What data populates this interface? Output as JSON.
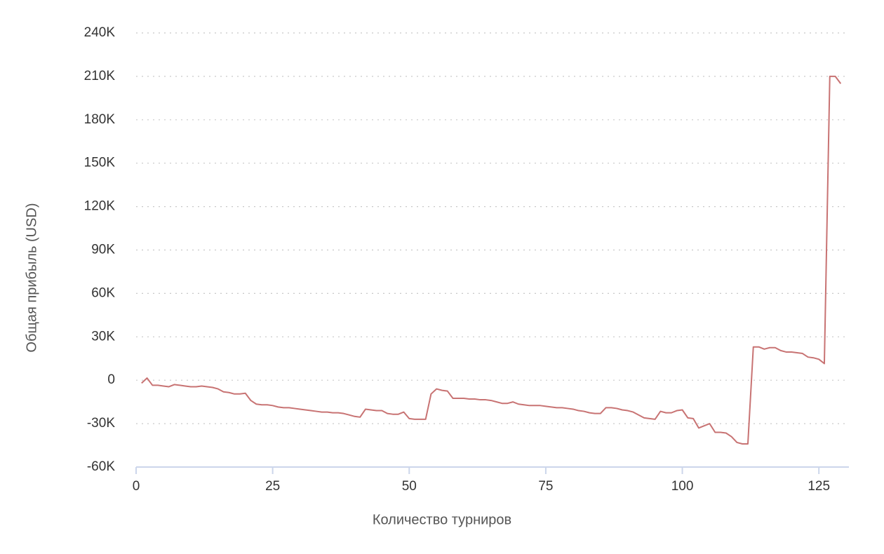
{
  "chart_data": {
    "type": "line",
    "x_label": "Количество турниров",
    "y_label": "Общая прибыль (USD)",
    "x": [
      1,
      2,
      3,
      4,
      5,
      6,
      7,
      8,
      9,
      10,
      11,
      12,
      13,
      14,
      15,
      16,
      17,
      18,
      19,
      20,
      21,
      22,
      23,
      24,
      25,
      26,
      27,
      28,
      29,
      30,
      31,
      32,
      33,
      34,
      35,
      36,
      37,
      38,
      39,
      40,
      41,
      42,
      43,
      44,
      45,
      46,
      47,
      48,
      49,
      50,
      51,
      52,
      53,
      54,
      55,
      56,
      57,
      58,
      59,
      60,
      61,
      62,
      63,
      64,
      65,
      66,
      67,
      68,
      69,
      70,
      71,
      72,
      73,
      74,
      75,
      76,
      77,
      78,
      79,
      80,
      81,
      82,
      83,
      84,
      85,
      86,
      87,
      88,
      89,
      90,
      91,
      92,
      93,
      94,
      95,
      96,
      97,
      98,
      99,
      100,
      101,
      102,
      103,
      104,
      105,
      106,
      107,
      108,
      109,
      110,
      111,
      112,
      113,
      114,
      115,
      116,
      117,
      118,
      119,
      120,
      121,
      122,
      123,
      124,
      125,
      126,
      127,
      128,
      129
    ],
    "series": [
      {
        "color": "#c87373",
        "values": [
          -2000,
          1500,
          -3500,
          -3500,
          -4000,
          -4500,
          -3000,
          -3500,
          -4000,
          -4500,
          -4500,
          -4000,
          -4500,
          -5000,
          -6000,
          -8000,
          -8500,
          -9500,
          -9500,
          -9000,
          -14000,
          -16500,
          -17000,
          -17000,
          -17500,
          -18500,
          -19000,
          -19000,
          -19500,
          -20000,
          -20500,
          -21000,
          -21500,
          -22000,
          -22000,
          -22500,
          -22500,
          -23000,
          -24000,
          -25000,
          -25500,
          -20000,
          -20500,
          -21000,
          -21000,
          -23000,
          -23500,
          -23500,
          -22000,
          -26500,
          -27000,
          -27000,
          -27000,
          -9500,
          -6000,
          -7000,
          -7500,
          -12500,
          -12500,
          -12500,
          -13000,
          -13000,
          -13500,
          -13500,
          -14000,
          -15000,
          -16000,
          -16000,
          -15000,
          -16500,
          -17000,
          -17500,
          -17500,
          -17500,
          -18000,
          -18500,
          -19000,
          -19000,
          -19500,
          -20000,
          -21000,
          -21500,
          -22500,
          -23000,
          -23000,
          -19000,
          -19000,
          -19500,
          -20500,
          -21000,
          -22000,
          -24000,
          -26000,
          -26500,
          -27000,
          -21500,
          -22500,
          -22500,
          -21000,
          -20500,
          -26000,
          -26500,
          -33000,
          -31500,
          -30000,
          -36000,
          -36000,
          -36500,
          -39000,
          -43000,
          -44000,
          -44000,
          23000,
          23000,
          21500,
          22500,
          22500,
          20500,
          19500,
          19500,
          19000,
          18500,
          16000,
          15500,
          14500,
          11500,
          210000,
          210000,
          205000
        ]
      }
    ],
    "xlim": [
      0,
      130.5
    ],
    "xticks": [
      0,
      25,
      50,
      75,
      100,
      125
    ],
    "ylim": [
      -60000,
      240000
    ],
    "yticks": [
      {
        "value": -60000,
        "label": "-60K"
      },
      {
        "value": -30000,
        "label": "-30K"
      },
      0,
      {
        "value": 30000,
        "label": "30K"
      },
      {
        "value": 60000,
        "label": "60K"
      },
      {
        "value": 90000,
        "label": "90K"
      },
      {
        "value": 120000,
        "label": "120K"
      },
      {
        "value": 150000,
        "label": "150K"
      },
      {
        "value": 180000,
        "label": "180K"
      },
      {
        "value": 210000,
        "label": "210K"
      },
      {
        "value": 240000,
        "label": "240K"
      }
    ],
    "grid": true
  }
}
